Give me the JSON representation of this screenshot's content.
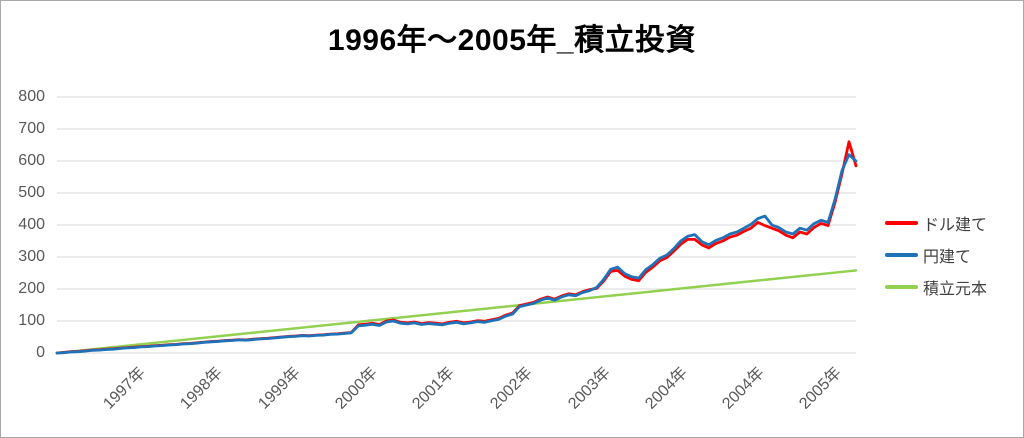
{
  "colors": {
    "dollar_line": "#FF0000",
    "yen_line": "#1F72B8",
    "principal_line": "#92D050",
    "gridline": "#D9D9D9",
    "axis_text": "#595959",
    "frame_border": "#A9A9A9"
  },
  "chart_data": {
    "type": "line",
    "title": "1996年～2005年_積立投資",
    "grid": "horizontal",
    "legend_position": "right",
    "y_axis": {
      "min": 0,
      "max": 800,
      "step": 100,
      "tick_labels": [
        "0",
        "100",
        "200",
        "300",
        "400",
        "500",
        "600",
        "700",
        "800"
      ]
    },
    "x_axis": {
      "note": "daily date axis, Jan 1996 to mid 2005, rotated year tick labels (2004 appears twice)",
      "ticks": [
        {
          "label": "1997年",
          "pos": 0.094
        },
        {
          "label": "1998年",
          "pos": 0.191
        },
        {
          "label": "1999年",
          "pos": 0.288
        },
        {
          "label": "2000年",
          "pos": 0.385
        },
        {
          "label": "2001年",
          "pos": 0.481
        },
        {
          "label": "2002年",
          "pos": 0.579
        },
        {
          "label": "2003年",
          "pos": 0.676
        },
        {
          "label": "2004年",
          "pos": 0.773
        },
        {
          "label": "2004年",
          "pos": 0.869
        },
        {
          "label": "2005年",
          "pos": 0.966
        }
      ]
    },
    "series": [
      {
        "name": "ドル建て",
        "color": "#FF0000",
        "width": 2.8,
        "values": [
          0,
          2,
          4,
          5,
          7,
          9,
          10,
          12,
          13,
          15,
          17,
          18,
          20,
          21,
          23,
          24,
          26,
          27,
          29,
          30,
          32,
          34,
          36,
          37,
          39,
          40,
          42,
          41,
          43,
          45,
          46,
          48,
          50,
          52,
          53,
          55,
          54,
          56,
          57,
          59,
          60,
          62,
          64,
          88,
          90,
          93,
          89,
          100,
          103,
          96,
          94,
          97,
          92,
          95,
          93,
          91,
          96,
          99,
          94,
          97,
          101,
          99,
          104,
          108,
          118,
          125,
          148,
          153,
          158,
          168,
          175,
          168,
          178,
          185,
          182,
          192,
          198,
          202,
          225,
          255,
          258,
          240,
          230,
          226,
          252,
          268,
          288,
          298,
          318,
          340,
          355,
          355,
          338,
          328,
          342,
          350,
          362,
          368,
          380,
          390,
          408,
          398,
          390,
          382,
          368,
          360,
          378,
          372,
          392,
          405,
          398,
          470,
          560,
          660,
          585
        ]
      },
      {
        "name": "円建て",
        "color": "#1F72B8",
        "width": 2.8,
        "values": [
          0,
          1,
          3,
          4,
          6,
          8,
          9,
          11,
          12,
          14,
          16,
          17,
          19,
          20,
          22,
          23,
          25,
          26,
          28,
          29,
          31,
          33,
          35,
          36,
          38,
          39,
          41,
          40,
          42,
          44,
          45,
          47,
          49,
          51,
          52,
          54,
          53,
          55,
          56,
          58,
          59,
          61,
          63,
          85,
          87,
          90,
          86,
          97,
          100,
          93,
          91,
          94,
          89,
          92,
          90,
          88,
          93,
          96,
          91,
          94,
          98,
          96,
          101,
          105,
          115,
          122,
          145,
          150,
          155,
          165,
          172,
          165,
          175,
          182,
          179,
          189,
          195,
          205,
          230,
          262,
          268,
          248,
          238,
          234,
          260,
          276,
          296,
          306,
          326,
          350,
          365,
          370,
          348,
          338,
          352,
          360,
          372,
          378,
          390,
          402,
          420,
          428,
          400,
          392,
          378,
          372,
          390,
          384,
          404,
          415,
          408,
          480,
          570,
          620,
          600
        ]
      },
      {
        "name": "積立元本",
        "color": "#92D050",
        "width": 2.5,
        "linear": {
          "start": 0,
          "end": 258
        }
      }
    ]
  }
}
